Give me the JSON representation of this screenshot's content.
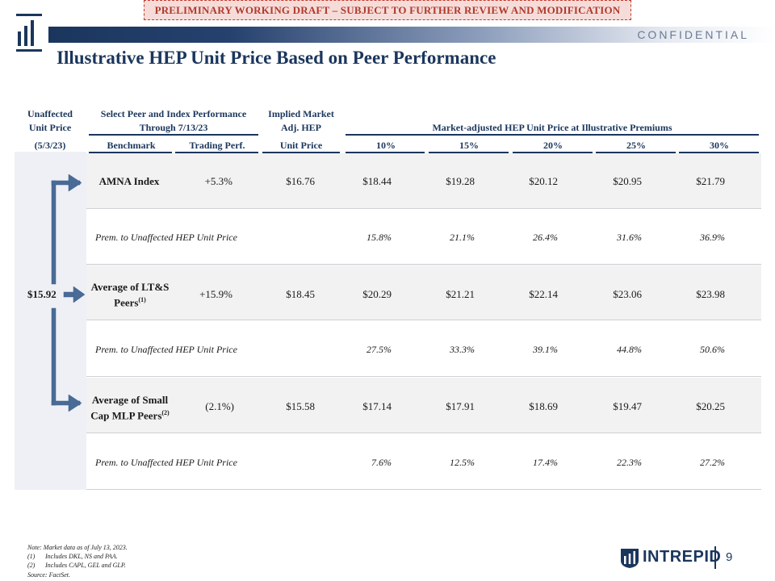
{
  "banner": "PRELIMINARY WORKING DRAFT – SUBJECT TO FURTHER REVIEW AND MODIFICATION",
  "confidential": "CONFIDENTIAL",
  "title": "Illustrative HEP Unit Price Based on Peer Performance",
  "headers": {
    "unaffected_line1": "Unaffected",
    "unaffected_line2": "Unit Price",
    "unaffected_line3": "(5/3/23)",
    "peer_line1": "Select Peer and Index Performance",
    "peer_line2": "Through 7/13/23",
    "benchmark": "Benchmark",
    "trading_perf": "Trading Perf.",
    "implied_line1": "Implied Market",
    "implied_line2": "Adj. HEP",
    "implied_line3": "Unit Price",
    "market_adjusted": "Market-adjusted HEP Unit Price at Illustrative Premiums",
    "premiums": [
      "10%",
      "15%",
      "20%",
      "25%",
      "30%"
    ]
  },
  "unaffected_price": "$15.92",
  "rows": [
    {
      "benchmark": "AMNA Index",
      "benchmark_sup": "",
      "perf": "+5.3%",
      "implied": "$16.76",
      "values": [
        "$18.44",
        "$19.28",
        "$20.12",
        "$20.95",
        "$21.79"
      ]
    },
    {
      "label": "Prem. to Unaffected HEP Unit Price",
      "values": [
        "15.8%",
        "21.1%",
        "26.4%",
        "31.6%",
        "36.9%"
      ]
    },
    {
      "benchmark_l1": "Average of LT&S",
      "benchmark_l2": "Peers",
      "benchmark_sup": "(1)",
      "perf": "+15.9%",
      "implied": "$18.45",
      "values": [
        "$20.29",
        "$21.21",
        "$22.14",
        "$23.06",
        "$23.98"
      ]
    },
    {
      "label": "Prem. to Unaffected HEP Unit Price",
      "values": [
        "27.5%",
        "33.3%",
        "39.1%",
        "44.8%",
        "50.6%"
      ]
    },
    {
      "benchmark_l1": "Average of Small",
      "benchmark_l2": "Cap MLP Peers",
      "benchmark_sup": "(2)",
      "perf": "(2.1%)",
      "implied": "$15.58",
      "values": [
        "$17.14",
        "$17.91",
        "$18.69",
        "$19.47",
        "$20.25"
      ]
    },
    {
      "label": "Prem. to Unaffected HEP Unit Price",
      "values": [
        "7.6%",
        "12.5%",
        "17.4%",
        "22.3%",
        "27.2%"
      ]
    }
  ],
  "footnotes": {
    "note": "Note: Market data as of July 13, 2023.",
    "fn1_num": "(1)",
    "fn1": "Includes DKL, NS and PAA.",
    "fn2_num": "(2)",
    "fn2": "Includes CAPL, GEL and GLP.",
    "source": "Source: FactSet."
  },
  "brand": "INTREPID",
  "page_number": "9",
  "colors": {
    "navy": "#1b365d",
    "arrow": "#4a6b96",
    "draft_border": "#c0392b",
    "draft_fill": "#f6dcd9",
    "shade": "#f2f2f2"
  }
}
